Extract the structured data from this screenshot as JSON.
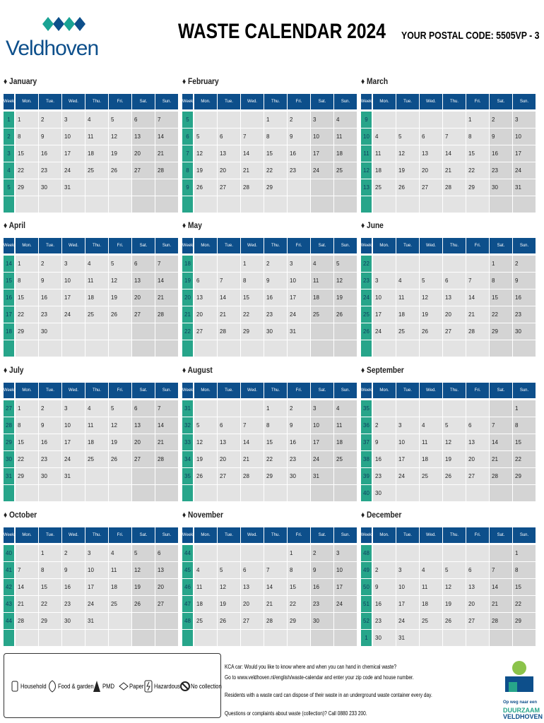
{
  "header": {
    "logo": "Veldhoven",
    "title": "WASTE CALENDAR 2024",
    "postal_code": "YOUR POSTAL CODE: 5505VP - 3"
  },
  "day_names": [
    "Week",
    "Mon.",
    "Tue.",
    "Wed.",
    "Thu.",
    "Fri.",
    "Sat.",
    "Sun."
  ],
  "months": [
    {
      "name": "January",
      "rows": [
        [
          1,
          1,
          2,
          3,
          4,
          5,
          6,
          7
        ],
        [
          2,
          8,
          9,
          10,
          11,
          12,
          13,
          14
        ],
        [
          3,
          15,
          16,
          17,
          18,
          19,
          20,
          21
        ],
        [
          4,
          22,
          23,
          24,
          25,
          26,
          27,
          28
        ],
        [
          5,
          29,
          30,
          31,
          null,
          null,
          null,
          null
        ]
      ]
    },
    {
      "name": "February",
      "rows": [
        [
          5,
          null,
          null,
          null,
          1,
          2,
          3,
          4
        ],
        [
          6,
          5,
          6,
          7,
          8,
          9,
          10,
          11
        ],
        [
          7,
          12,
          13,
          14,
          15,
          16,
          17,
          18
        ],
        [
          8,
          19,
          20,
          21,
          22,
          23,
          24,
          25
        ],
        [
          9,
          26,
          27,
          28,
          29,
          null,
          null,
          null
        ]
      ]
    },
    {
      "name": "March",
      "rows": [
        [
          9,
          null,
          null,
          null,
          null,
          1,
          2,
          3
        ],
        [
          10,
          4,
          5,
          6,
          7,
          8,
          9,
          10
        ],
        [
          11,
          11,
          12,
          13,
          14,
          15,
          16,
          17
        ],
        [
          12,
          18,
          19,
          20,
          21,
          22,
          23,
          24
        ],
        [
          13,
          25,
          26,
          27,
          28,
          29,
          30,
          31
        ]
      ]
    },
    {
      "name": "April",
      "rows": [
        [
          14,
          1,
          2,
          3,
          4,
          5,
          6,
          7
        ],
        [
          15,
          8,
          9,
          10,
          11,
          12,
          13,
          14
        ],
        [
          16,
          15,
          16,
          17,
          18,
          19,
          20,
          21
        ],
        [
          17,
          22,
          23,
          24,
          25,
          26,
          27,
          28
        ],
        [
          18,
          29,
          30,
          null,
          null,
          null,
          null,
          null
        ]
      ]
    },
    {
      "name": "May",
      "rows": [
        [
          18,
          null,
          null,
          1,
          2,
          3,
          4,
          5
        ],
        [
          19,
          6,
          7,
          8,
          9,
          10,
          11,
          12
        ],
        [
          20,
          13,
          14,
          15,
          16,
          17,
          18,
          19
        ],
        [
          21,
          20,
          21,
          22,
          23,
          24,
          25,
          26
        ],
        [
          22,
          27,
          28,
          29,
          30,
          31,
          null,
          null
        ]
      ]
    },
    {
      "name": "June",
      "rows": [
        [
          22,
          null,
          null,
          null,
          null,
          null,
          1,
          2
        ],
        [
          23,
          3,
          4,
          5,
          6,
          7,
          8,
          9
        ],
        [
          24,
          10,
          11,
          12,
          13,
          14,
          15,
          16
        ],
        [
          25,
          17,
          18,
          19,
          20,
          21,
          22,
          23
        ],
        [
          26,
          24,
          25,
          26,
          27,
          28,
          29,
          30
        ]
      ]
    },
    {
      "name": "July",
      "rows": [
        [
          27,
          1,
          2,
          3,
          4,
          5,
          6,
          7
        ],
        [
          28,
          8,
          9,
          10,
          11,
          12,
          13,
          14
        ],
        [
          29,
          15,
          16,
          17,
          18,
          19,
          20,
          21
        ],
        [
          30,
          22,
          23,
          24,
          25,
          26,
          27,
          28
        ],
        [
          31,
          29,
          30,
          31,
          null,
          null,
          null,
          null
        ]
      ]
    },
    {
      "name": "August",
      "rows": [
        [
          31,
          null,
          null,
          null,
          1,
          2,
          3,
          4
        ],
        [
          32,
          5,
          6,
          7,
          8,
          9,
          10,
          11
        ],
        [
          33,
          12,
          13,
          14,
          15,
          16,
          17,
          18
        ],
        [
          34,
          19,
          20,
          21,
          22,
          23,
          24,
          25
        ],
        [
          35,
          26,
          27,
          28,
          29,
          30,
          31,
          null
        ]
      ]
    },
    {
      "name": "September",
      "rows": [
        [
          35,
          null,
          null,
          null,
          null,
          null,
          null,
          1
        ],
        [
          36,
          2,
          3,
          4,
          5,
          6,
          7,
          8
        ],
        [
          37,
          9,
          10,
          11,
          12,
          13,
          14,
          15
        ],
        [
          38,
          16,
          17,
          18,
          19,
          20,
          21,
          22
        ],
        [
          39,
          23,
          24,
          25,
          26,
          27,
          28,
          29
        ],
        [
          40,
          30,
          null,
          null,
          null,
          null,
          null,
          null
        ]
      ]
    },
    {
      "name": "October",
      "rows": [
        [
          40,
          null,
          1,
          2,
          3,
          4,
          5,
          6
        ],
        [
          41,
          7,
          8,
          9,
          10,
          11,
          12,
          13
        ],
        [
          42,
          14,
          15,
          16,
          17,
          18,
          19,
          20
        ],
        [
          43,
          21,
          22,
          23,
          24,
          25,
          26,
          27
        ],
        [
          44,
          28,
          29,
          30,
          31,
          null,
          null,
          null
        ]
      ]
    },
    {
      "name": "November",
      "rows": [
        [
          44,
          null,
          null,
          null,
          null,
          1,
          2,
          3
        ],
        [
          45,
          4,
          5,
          6,
          7,
          8,
          9,
          10
        ],
        [
          46,
          11,
          12,
          13,
          14,
          15,
          16,
          17
        ],
        [
          47,
          18,
          19,
          20,
          21,
          22,
          23,
          24
        ],
        [
          48,
          25,
          26,
          27,
          28,
          29,
          30,
          null
        ]
      ]
    },
    {
      "name": "December",
      "rows": [
        [
          48,
          null,
          null,
          null,
          null,
          null,
          null,
          1
        ],
        [
          49,
          2,
          3,
          4,
          5,
          6,
          7,
          8
        ],
        [
          50,
          9,
          10,
          11,
          12,
          13,
          14,
          15
        ],
        [
          51,
          16,
          17,
          18,
          19,
          20,
          21,
          22
        ],
        [
          52,
          23,
          24,
          25,
          26,
          27,
          28,
          29
        ],
        [
          1,
          30,
          31,
          null,
          null,
          null,
          null,
          null
        ]
      ]
    }
  ],
  "legend": [
    "Household",
    "Food & garden",
    "PMD",
    "Paper",
    "Hazardous",
    "No collection"
  ],
  "info": [
    "KCA car: Would you like to know where and when you can hand in chemical waste?",
    "Go to www.veldhoven.nl/english/waste-calendar and enter your zip code and house number.",
    "Residents with a waste card can dispose of their waste in an underground waste container every day.",
    "Questions or complaints about waste (collection)? Call 0880 233 200."
  ],
  "footer_logo": [
    "Op weg naar een",
    "DUURZAAM",
    "VELDHOVEN"
  ]
}
